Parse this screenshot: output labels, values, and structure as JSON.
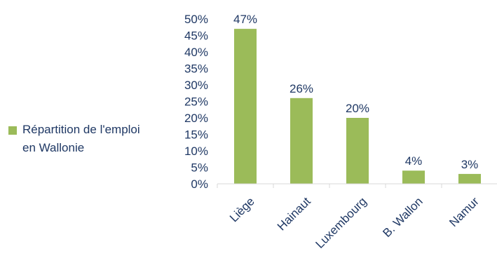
{
  "chart_data": {
    "type": "bar",
    "categories": [
      "Liège",
      "Hainaut",
      "Luxembourg",
      "B. Wallon",
      "Namur"
    ],
    "series": [
      {
        "name": "Répartition de l'emploi en Wallonie",
        "values": [
          47,
          26,
          20,
          4,
          3
        ]
      }
    ],
    "value_labels": [
      "47%",
      "26%",
      "20%",
      "4%",
      "3%"
    ],
    "yticks": [
      "0%",
      "5%",
      "10%",
      "15%",
      "20%",
      "25%",
      "30%",
      "35%",
      "40%",
      "45%",
      "50%"
    ],
    "ylim": [
      0,
      50
    ],
    "grid": false,
    "legend_position": "left",
    "bar_color": "#9bbb59",
    "text_color": "#1f3864",
    "axis_color": "#d9d9d9"
  },
  "legend": {
    "line1": "Répartition de l'emploi",
    "line2": "en Wallonie"
  }
}
